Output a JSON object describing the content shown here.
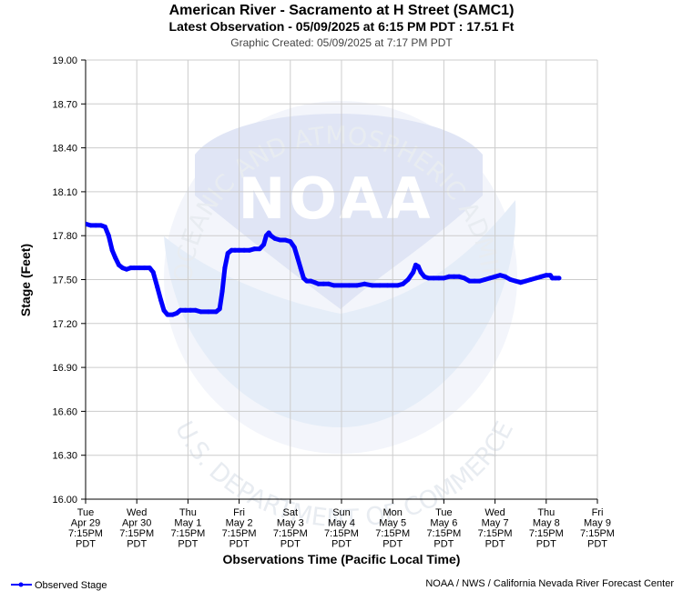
{
  "chart_data": {
    "type": "line",
    "title": "American River - Sacramento at H Street (SAMC1)",
    "subtitle": "Latest Observation - 05/09/2025 at 6:15 PM PDT : 17.51 Ft",
    "created": "Graphic Created: 05/09/2025 at 7:17 PM PDT",
    "ylabel": "Stage (Feet)",
    "xlabel": "Observations Time (Pacific Local Time)",
    "ylim": [
      16.0,
      19.0
    ],
    "xlim": [
      0,
      10
    ],
    "grid": true,
    "legend_position": "bottom-left",
    "y_ticks": [
      "19.00",
      "18.70",
      "18.40",
      "18.10",
      "17.80",
      "17.50",
      "17.20",
      "16.90",
      "16.60",
      "16.30",
      "16.00"
    ],
    "x_ticks": [
      {
        "day": "Tue",
        "date": "Apr 29",
        "time": "7:15PM",
        "tz": "PDT"
      },
      {
        "day": "Wed",
        "date": "Apr 30",
        "time": "7:15PM",
        "tz": "PDT"
      },
      {
        "day": "Thu",
        "date": "May 1",
        "time": "7:15PM",
        "tz": "PDT"
      },
      {
        "day": "Fri",
        "date": "May 2",
        "time": "7:15PM",
        "tz": "PDT"
      },
      {
        "day": "Sat",
        "date": "May 3",
        "time": "7:15PM",
        "tz": "PDT"
      },
      {
        "day": "Sun",
        "date": "May 4",
        "time": "7:15PM",
        "tz": "PDT"
      },
      {
        "day": "Mon",
        "date": "May 5",
        "time": "7:15PM",
        "tz": "PDT"
      },
      {
        "day": "Tue",
        "date": "May 6",
        "time": "7:15PM",
        "tz": "PDT"
      },
      {
        "day": "Wed",
        "date": "May 7",
        "time": "7:15PM",
        "tz": "PDT"
      },
      {
        "day": "Thu",
        "date": "May 8",
        "time": "7:15PM",
        "tz": "PDT"
      },
      {
        "day": "Fri",
        "date": "May 9",
        "time": "7:15PM",
        "tz": "PDT"
      }
    ],
    "series": [
      {
        "name": "Observed Stage",
        "color": "#0000ff",
        "points": [
          [
            0.0,
            17.88
          ],
          [
            0.1,
            17.87
          ],
          [
            0.2,
            17.87
          ],
          [
            0.3,
            17.87
          ],
          [
            0.38,
            17.86
          ],
          [
            0.45,
            17.8
          ],
          [
            0.52,
            17.7
          ],
          [
            0.58,
            17.65
          ],
          [
            0.65,
            17.6
          ],
          [
            0.72,
            17.58
          ],
          [
            0.8,
            17.57
          ],
          [
            0.88,
            17.58
          ],
          [
            0.95,
            17.58
          ],
          [
            1.05,
            17.58
          ],
          [
            1.15,
            17.58
          ],
          [
            1.25,
            17.58
          ],
          [
            1.32,
            17.55
          ],
          [
            1.4,
            17.45
          ],
          [
            1.47,
            17.36
          ],
          [
            1.53,
            17.29
          ],
          [
            1.6,
            17.26
          ],
          [
            1.7,
            17.26
          ],
          [
            1.78,
            17.27
          ],
          [
            1.85,
            17.29
          ],
          [
            1.95,
            17.29
          ],
          [
            2.05,
            17.29
          ],
          [
            2.15,
            17.29
          ],
          [
            2.25,
            17.28
          ],
          [
            2.4,
            17.28
          ],
          [
            2.55,
            17.28
          ],
          [
            2.62,
            17.3
          ],
          [
            2.67,
            17.42
          ],
          [
            2.72,
            17.58
          ],
          [
            2.78,
            17.68
          ],
          [
            2.85,
            17.7
          ],
          [
            2.92,
            17.7
          ],
          [
            3.0,
            17.7
          ],
          [
            3.1,
            17.7
          ],
          [
            3.2,
            17.7
          ],
          [
            3.3,
            17.71
          ],
          [
            3.4,
            17.71
          ],
          [
            3.48,
            17.74
          ],
          [
            3.53,
            17.8
          ],
          [
            3.58,
            17.82
          ],
          [
            3.62,
            17.8
          ],
          [
            3.7,
            17.78
          ],
          [
            3.8,
            17.77
          ],
          [
            3.9,
            17.77
          ],
          [
            4.0,
            17.76
          ],
          [
            4.08,
            17.72
          ],
          [
            4.14,
            17.65
          ],
          [
            4.2,
            17.58
          ],
          [
            4.26,
            17.51
          ],
          [
            4.32,
            17.49
          ],
          [
            4.4,
            17.49
          ],
          [
            4.48,
            17.48
          ],
          [
            4.55,
            17.47
          ],
          [
            4.65,
            17.47
          ],
          [
            4.75,
            17.47
          ],
          [
            4.85,
            17.46
          ],
          [
            5.0,
            17.46
          ],
          [
            5.15,
            17.46
          ],
          [
            5.3,
            17.46
          ],
          [
            5.45,
            17.47
          ],
          [
            5.6,
            17.46
          ],
          [
            5.75,
            17.46
          ],
          [
            5.9,
            17.46
          ],
          [
            6.0,
            17.46
          ],
          [
            6.1,
            17.46
          ],
          [
            6.2,
            17.47
          ],
          [
            6.3,
            17.5
          ],
          [
            6.4,
            17.55
          ],
          [
            6.45,
            17.6
          ],
          [
            6.5,
            17.59
          ],
          [
            6.55,
            17.55
          ],
          [
            6.62,
            17.52
          ],
          [
            6.7,
            17.51
          ],
          [
            6.8,
            17.51
          ],
          [
            6.9,
            17.51
          ],
          [
            7.0,
            17.51
          ],
          [
            7.1,
            17.52
          ],
          [
            7.2,
            17.52
          ],
          [
            7.3,
            17.52
          ],
          [
            7.4,
            17.51
          ],
          [
            7.5,
            17.49
          ],
          [
            7.6,
            17.49
          ],
          [
            7.7,
            17.49
          ],
          [
            7.8,
            17.5
          ],
          [
            7.9,
            17.51
          ],
          [
            8.0,
            17.52
          ],
          [
            8.1,
            17.53
          ],
          [
            8.2,
            17.52
          ],
          [
            8.3,
            17.5
          ],
          [
            8.4,
            17.49
          ],
          [
            8.5,
            17.48
          ],
          [
            8.6,
            17.49
          ],
          [
            8.7,
            17.5
          ],
          [
            8.8,
            17.51
          ],
          [
            8.9,
            17.52
          ],
          [
            9.0,
            17.53
          ],
          [
            9.08,
            17.53
          ],
          [
            9.12,
            17.51
          ],
          [
            9.18,
            17.51
          ],
          [
            9.25,
            17.51
          ]
        ]
      }
    ]
  },
  "watermark": {
    "logo_text": "NOAA",
    "ring_text_top": "NATIONAL OCEANIC AND ATMOSPHERIC ADMINISTRATION",
    "ring_text_bottom": "U.S. DEPARTMENT OF COMMERCE"
  },
  "legend": {
    "label": "Observed Stage"
  },
  "footer": {
    "credit": "NOAA / NWS / California Nevada River Forecast Center"
  }
}
